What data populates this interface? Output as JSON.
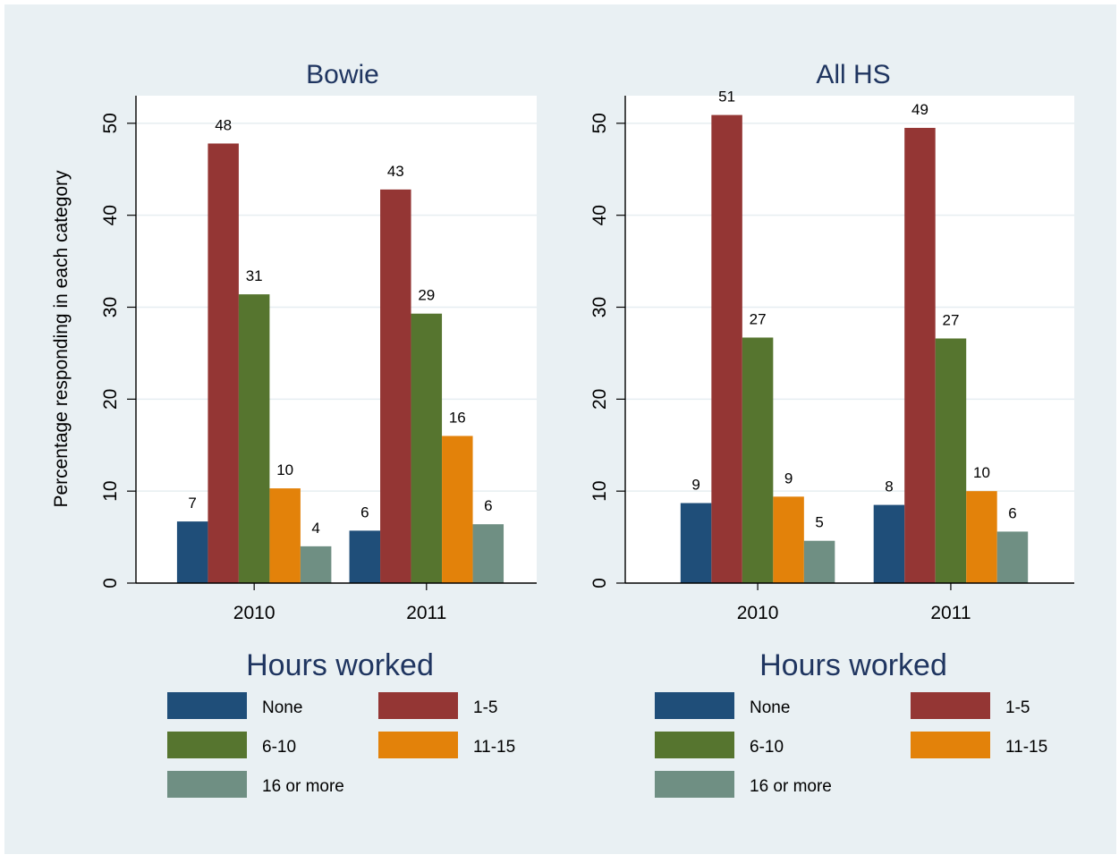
{
  "chart_data": [
    {
      "type": "bar",
      "title": "Bowie",
      "xlabel": "",
      "ylabel": "Percentage responding in each category",
      "ylim": [
        0,
        53
      ],
      "yticks": [
        0,
        10,
        20,
        30,
        40,
        50
      ],
      "grid": true,
      "legend_title": "Hours worked",
      "legend_position": "bottom",
      "categories": [
        "2010",
        "2011"
      ],
      "series": [
        {
          "name": "None",
          "color": "#1f4e79",
          "values": [
            6.7,
            5.7
          ],
          "labels": [
            "7",
            "6"
          ]
        },
        {
          "name": "1-5",
          "color": "#943634",
          "values": [
            47.8,
            42.8
          ],
          "labels": [
            "48",
            "43"
          ]
        },
        {
          "name": "6-10",
          "color": "#56752f",
          "values": [
            31.4,
            29.3
          ],
          "labels": [
            "31",
            "29"
          ]
        },
        {
          "name": "11-15",
          "color": "#e3820a",
          "values": [
            10.3,
            16.0
          ],
          "labels": [
            "10",
            "16"
          ]
        },
        {
          "name": "16 or more",
          "color": "#6f8f83",
          "values": [
            4.0,
            6.4
          ],
          "labels": [
            "4",
            "6"
          ]
        }
      ]
    },
    {
      "type": "bar",
      "title": "All HS",
      "xlabel": "",
      "ylabel": "",
      "ylim": [
        0,
        53
      ],
      "yticks": [
        0,
        10,
        20,
        30,
        40,
        50
      ],
      "grid": true,
      "legend_title": "Hours worked",
      "legend_position": "bottom",
      "categories": [
        "2010",
        "2011"
      ],
      "series": [
        {
          "name": "None",
          "color": "#1f4e79",
          "values": [
            8.7,
            8.5
          ],
          "labels": [
            "9",
            "8"
          ]
        },
        {
          "name": "1-5",
          "color": "#943634",
          "values": [
            50.9,
            49.5
          ],
          "labels": [
            "51",
            "49"
          ]
        },
        {
          "name": "6-10",
          "color": "#56752f",
          "values": [
            26.7,
            26.6
          ],
          "labels": [
            "27",
            "27"
          ]
        },
        {
          "name": "11-15",
          "color": "#e3820a",
          "values": [
            9.4,
            10.0
          ],
          "labels": [
            "9",
            "10"
          ]
        },
        {
          "name": "16 or more",
          "color": "#6f8f83",
          "values": [
            4.6,
            5.6
          ],
          "labels": [
            "5",
            "6"
          ]
        }
      ]
    }
  ],
  "colors": {
    "outer_background": "#e9f0f3",
    "plot_background": "#ffffff",
    "gridline": "#e6eef1",
    "title_text": "#1f3560"
  }
}
